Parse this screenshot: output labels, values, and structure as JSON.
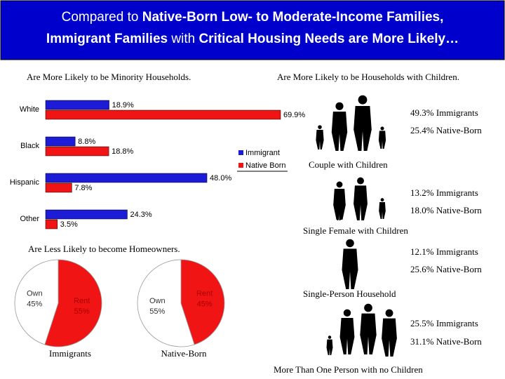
{
  "header": {
    "title_parts": [
      "Compared to ",
      "Native-Born Low- to Moderate-Income Families,",
      "Immigrant Families",
      " with ",
      "Critical Housing Needs are More Likely…"
    ]
  },
  "chart_data": [
    {
      "type": "hbar",
      "title": "Are More Likely to be Minority Households.",
      "categories": [
        "White",
        "Black",
        "Hispanic",
        "Other"
      ],
      "series": [
        {
          "name": "Immigrant",
          "color": "#1c1cd6",
          "values": [
            18.9,
            8.8,
            48.0,
            24.3
          ],
          "value_labels": [
            "18.9%",
            "8.8%",
            "48.0%",
            "24.3%"
          ]
        },
        {
          "name": "Native Born",
          "color": "#f01414",
          "values": [
            69.9,
            18.8,
            7.8,
            3.5
          ],
          "value_labels": [
            "69.9%",
            "18.8%",
            "7.8%",
            "3.5%"
          ]
        }
      ]
    },
    {
      "type": "pie",
      "title": "Immigrants",
      "categories": [
        "Rent",
        "Own"
      ],
      "values": [
        55,
        45
      ],
      "value_labels": [
        "55%",
        "45%"
      ],
      "colors": [
        "#f01414",
        "#ffffff"
      ]
    },
    {
      "type": "pie",
      "title": "Native-Born",
      "categories": [
        "Rent",
        "Own"
      ],
      "values": [
        45,
        55
      ],
      "value_labels": [
        "45%",
        "55%"
      ],
      "colors": [
        "#f01414",
        "#ffffff"
      ]
    }
  ],
  "pie_heading": "Are Less Likely to become Homeowners.",
  "right_panel": {
    "title": "Are More Likely to be Households with Children.",
    "items": [
      {
        "immigrants": "49.3% Immigrants",
        "native": "25.4% Native-Born",
        "caption": "Couple with Children"
      },
      {
        "immigrants": "13.2% Immigrants",
        "native": "18.0% Native-Born",
        "caption": "Single Female with Children"
      },
      {
        "immigrants": "12.1% Immigrants",
        "native": "25.6% Native-Born",
        "caption": "Single-Person Household"
      },
      {
        "immigrants": "25.5% Immigrants",
        "native": "31.1% Native-Born",
        "caption": "More Than One Person with no Children"
      }
    ]
  }
}
